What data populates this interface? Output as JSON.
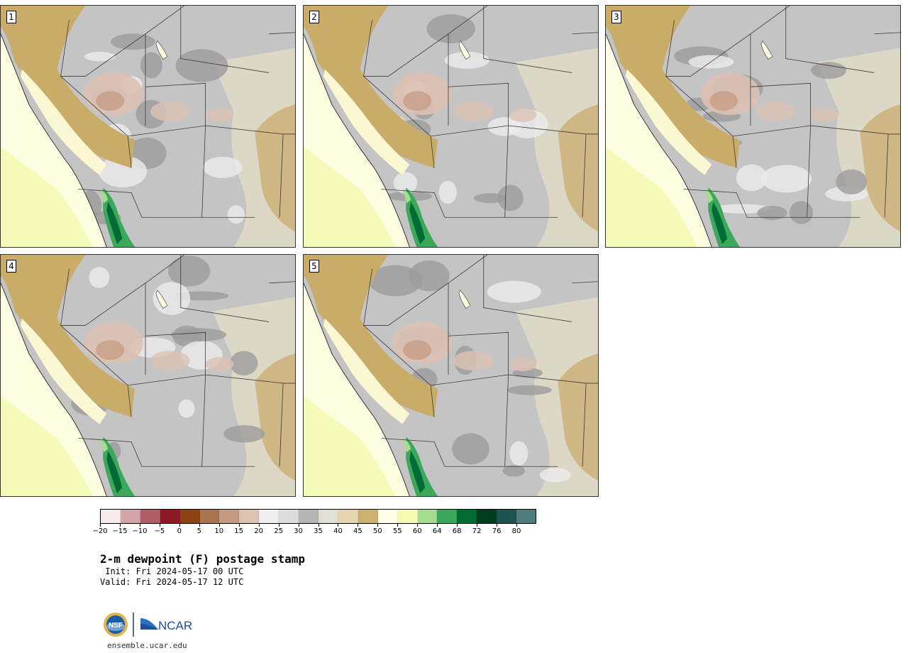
{
  "title": "2-m dewpoint (F) postage stamp",
  "init_line": " Init: Fri 2024-05-17 00 UTC",
  "valid_line": "Valid: Fri 2024-05-17 12 UTC",
  "panels": [
    {
      "label": "1"
    },
    {
      "label": "2"
    },
    {
      "label": "3"
    },
    {
      "label": "4"
    },
    {
      "label": "5"
    }
  ],
  "colorbar": {
    "ticks": [
      "-20",
      "-15",
      "-10",
      "-5",
      "0",
      "5",
      "10",
      "15",
      "20",
      "25",
      "30",
      "35",
      "40",
      "45",
      "50",
      "55",
      "60",
      "64",
      "68",
      "72",
      "76",
      "80"
    ],
    "colors": [
      "#f6e9ea",
      "#d4a3a6",
      "#b05c64",
      "#8c1a24",
      "#8b4410",
      "#aa7450",
      "#c49a80",
      "#ddc3b4",
      "#efefef",
      "#dcdcdc",
      "#b4b4b4",
      "#e0e0d2",
      "#e6d4ae",
      "#ccb06e",
      "#fffee6",
      "#f6fab0",
      "#a6dc90",
      "#3ca85c",
      "#006c34",
      "#003c1e",
      "#1e5450",
      "#507e7e"
    ]
  },
  "logos": {
    "nsf": "NSF",
    "ncar": "NCAR"
  },
  "website": "ensemble.ucar.edu"
}
